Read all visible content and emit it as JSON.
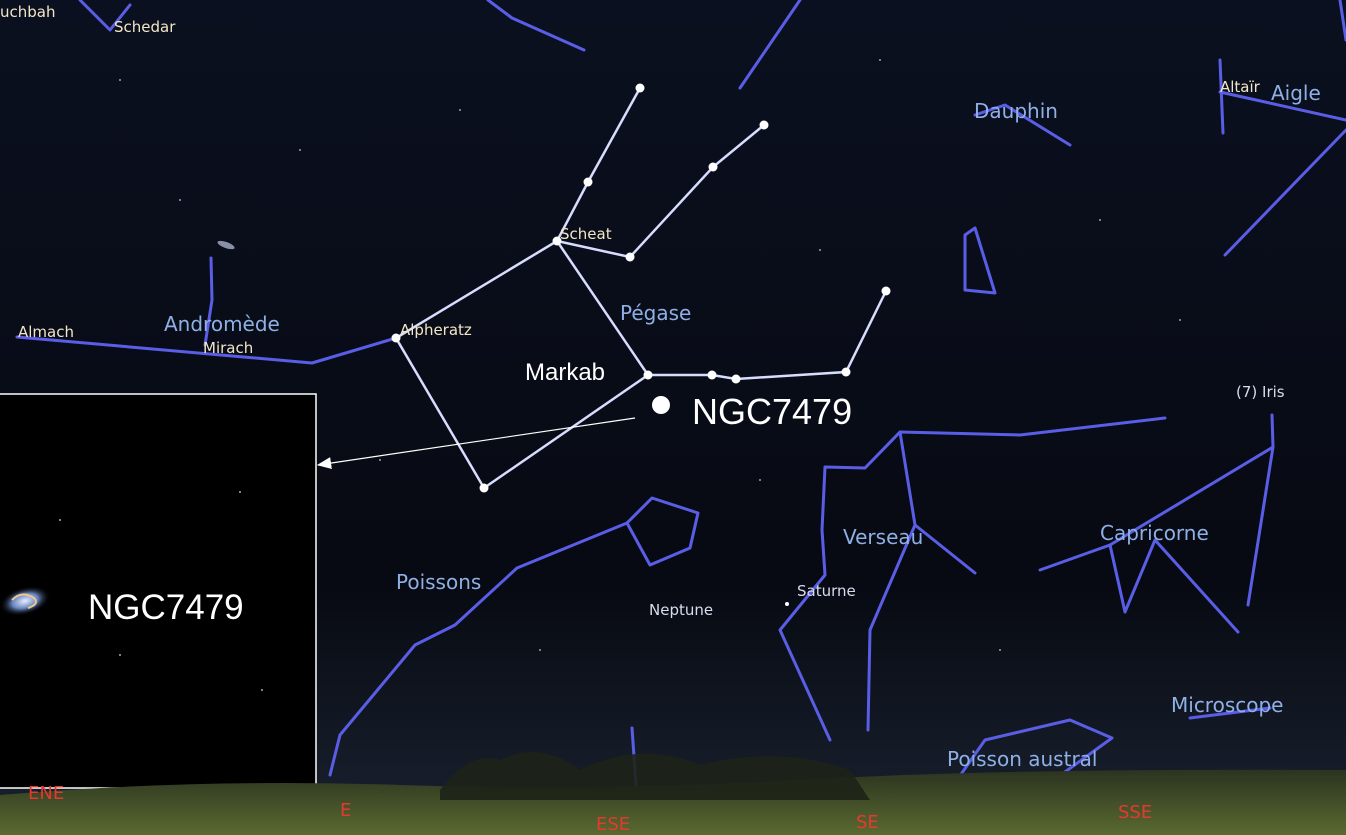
{
  "stars": {
    "ruchbah": "uchbah",
    "schedar": "Schedar",
    "altair": "Altaïr",
    "scheat": "Scheat",
    "alpheratz": "Alpheratz",
    "almach": "Almach",
    "mirach": "Mirach",
    "markab": "Markab"
  },
  "constellations": {
    "aigle": "Aigle",
    "dauphin": "Dauphin",
    "pegase": "Pégase",
    "andromede": "Andromède",
    "verseau": "Verseau",
    "capricorne": "Capricorne",
    "poissons": "Poissons",
    "microscope": "Microscope",
    "poisson_austral": "Poisson austral"
  },
  "planets": {
    "iris": "(7) Iris",
    "saturne": "Saturne",
    "neptune": "Neptune"
  },
  "target": {
    "label": "NGC7479"
  },
  "inset": {
    "label": "NGC7479"
  },
  "compass": [
    "ENE",
    "E",
    "ESE",
    "SE",
    "SSE"
  ]
}
